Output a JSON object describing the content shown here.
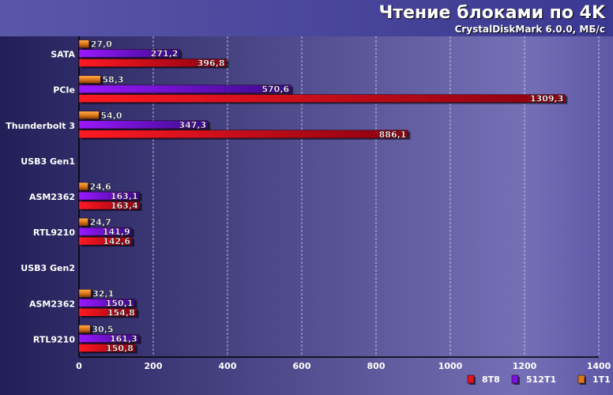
{
  "title": "Чтение блоками по 4K",
  "subtitle": "CrystalDiskMark 6.0.0, МБ/с",
  "colors": {
    "plot_left": "#2a2760",
    "plot_right": "#7a72b8",
    "header": "#3c3a8a",
    "series_8T8": "#e8101c",
    "series_512T1": "#7a10e0",
    "series_1T1": "#e07818"
  },
  "chart_data": {
    "type": "bar",
    "orientation": "horizontal",
    "categories": [
      "SATA",
      "PCIe",
      "Thunderbolt 3",
      "USB3 Gen1",
      "ASM2362",
      "RTL9210",
      "USB3 Gen2",
      "ASM2362",
      "RTL9210"
    ],
    "series": [
      {
        "name": "1T1",
        "values": [
          27.0,
          58.3,
          54.0,
          null,
          24.6,
          24.7,
          null,
          32.1,
          30.5
        ],
        "labels": [
          "27,0",
          "58,3",
          "54,0",
          "",
          "24,6",
          "24,7",
          "",
          "32,1",
          "30,5"
        ]
      },
      {
        "name": "512T1",
        "values": [
          271.2,
          570.6,
          347.3,
          null,
          163.1,
          141.9,
          null,
          150.1,
          161.3
        ],
        "labels": [
          "271,2",
          "570,6",
          "347,3",
          "",
          "163,1",
          "141,9",
          "",
          "150,1",
          "161,3"
        ]
      },
      {
        "name": "8T8",
        "values": [
          396.8,
          1309.3,
          886.1,
          null,
          163.4,
          142.6,
          null,
          154.8,
          150.8
        ],
        "labels": [
          "396,8",
          "1309,3",
          "886,1",
          "",
          "163,4",
          "142,6",
          "",
          "154,8",
          "150,8"
        ]
      }
    ],
    "xlim": [
      0,
      1400
    ],
    "xticks": [
      "0",
      "200",
      "400",
      "600",
      "800",
      "1000",
      "1200",
      "1400"
    ],
    "grid": true,
    "legend_placement": "bottom-right",
    "legend": [
      "8T8",
      "512T1",
      "1T1"
    ]
  }
}
